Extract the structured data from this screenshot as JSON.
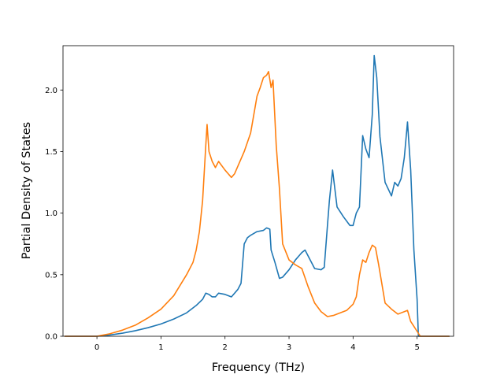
{
  "chart_data": {
    "type": "line",
    "title": "",
    "xlabel": "Frequency (THz)",
    "ylabel": "Partial Density of States",
    "xlim": [
      -0.53,
      5.57
    ],
    "ylim": [
      0.0,
      2.36
    ],
    "xticks": [
      0,
      1,
      2,
      3,
      4,
      5
    ],
    "yticks": [
      0.0,
      0.5,
      1.0,
      1.5,
      2.0
    ],
    "xtick_labels": [
      "0",
      "1",
      "2",
      "3",
      "4",
      "5"
    ],
    "ytick_labels": [
      "0.0",
      "0.5",
      "1.0",
      "1.5",
      "2.0"
    ],
    "grid": false,
    "legend": "none",
    "series": [
      {
        "color": "#1f77b4",
        "x": [
          -0.5,
          0.0,
          0.2,
          0.4,
          0.6,
          0.8,
          1.0,
          1.2,
          1.4,
          1.55,
          1.65,
          1.7,
          1.75,
          1.8,
          1.85,
          1.9,
          2.0,
          2.1,
          2.2,
          2.25,
          2.3,
          2.35,
          2.4,
          2.5,
          2.6,
          2.65,
          2.7,
          2.72,
          2.78,
          2.85,
          2.9,
          3.0,
          3.1,
          3.2,
          3.25,
          3.4,
          3.5,
          3.55,
          3.6,
          3.63,
          3.68,
          3.75,
          3.85,
          3.95,
          4.0,
          4.05,
          4.1,
          4.15,
          4.2,
          4.25,
          4.3,
          4.33,
          4.37,
          4.42,
          4.5,
          4.6,
          4.65,
          4.7,
          4.75,
          4.8,
          4.85,
          4.9,
          4.95,
          5.0,
          5.02,
          5.5
        ],
        "y": [
          0.0,
          0.0,
          0.01,
          0.025,
          0.045,
          0.07,
          0.1,
          0.14,
          0.19,
          0.25,
          0.3,
          0.35,
          0.34,
          0.32,
          0.32,
          0.35,
          0.34,
          0.32,
          0.38,
          0.43,
          0.75,
          0.8,
          0.82,
          0.85,
          0.86,
          0.88,
          0.87,
          0.7,
          0.6,
          0.47,
          0.48,
          0.54,
          0.62,
          0.68,
          0.7,
          0.55,
          0.54,
          0.56,
          0.9,
          1.1,
          1.35,
          1.05,
          0.97,
          0.9,
          0.9,
          1.0,
          1.05,
          1.63,
          1.52,
          1.45,
          1.8,
          2.28,
          2.1,
          1.62,
          1.25,
          1.14,
          1.25,
          1.22,
          1.28,
          1.45,
          1.74,
          1.35,
          0.7,
          0.3,
          0.0,
          0.0
        ]
      },
      {
        "color": "#ff7f0e",
        "x": [
          -0.5,
          0.0,
          0.2,
          0.4,
          0.6,
          0.8,
          1.0,
          1.2,
          1.4,
          1.5,
          1.55,
          1.6,
          1.65,
          1.7,
          1.72,
          1.75,
          1.8,
          1.85,
          1.9,
          2.0,
          2.05,
          2.1,
          2.15,
          2.2,
          2.3,
          2.4,
          2.45,
          2.5,
          2.55,
          2.6,
          2.65,
          2.68,
          2.72,
          2.75,
          2.8,
          2.85,
          2.9,
          3.0,
          3.1,
          3.2,
          3.3,
          3.4,
          3.5,
          3.6,
          3.7,
          3.8,
          3.9,
          4.0,
          4.05,
          4.1,
          4.15,
          4.2,
          4.25,
          4.3,
          4.35,
          4.4,
          4.5,
          4.6,
          4.7,
          4.8,
          4.85,
          4.9,
          4.95,
          5.0,
          5.05,
          5.5
        ],
        "y": [
          0.0,
          0.0,
          0.02,
          0.05,
          0.09,
          0.15,
          0.22,
          0.33,
          0.5,
          0.6,
          0.7,
          0.85,
          1.1,
          1.55,
          1.72,
          1.5,
          1.42,
          1.37,
          1.42,
          1.35,
          1.32,
          1.29,
          1.32,
          1.38,
          1.5,
          1.65,
          1.8,
          1.95,
          2.02,
          2.1,
          2.12,
          2.15,
          2.02,
          2.08,
          1.55,
          1.2,
          0.75,
          0.62,
          0.58,
          0.55,
          0.4,
          0.27,
          0.2,
          0.16,
          0.17,
          0.19,
          0.21,
          0.26,
          0.32,
          0.5,
          0.62,
          0.6,
          0.68,
          0.74,
          0.72,
          0.58,
          0.27,
          0.22,
          0.18,
          0.2,
          0.21,
          0.12,
          0.08,
          0.04,
          0.0,
          0.0
        ]
      }
    ]
  }
}
